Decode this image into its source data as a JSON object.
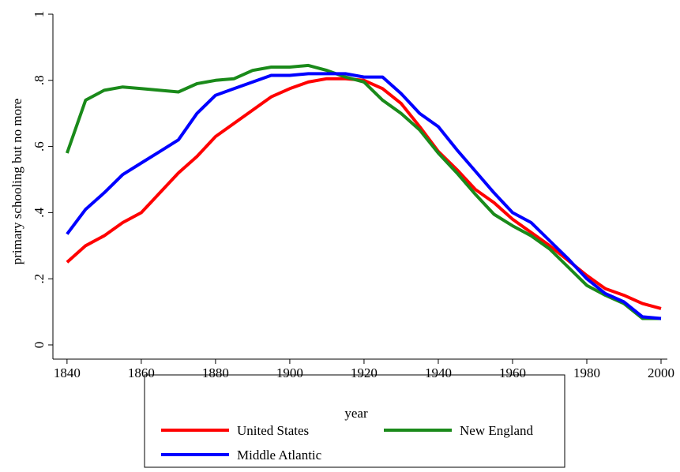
{
  "chart_data": {
    "type": "line",
    "xlabel": "year",
    "ylabel": "primary schooling but no more",
    "x": [
      1840,
      1845,
      1850,
      1855,
      1860,
      1865,
      1870,
      1875,
      1880,
      1885,
      1890,
      1895,
      1900,
      1905,
      1910,
      1915,
      1920,
      1925,
      1930,
      1935,
      1940,
      1945,
      1950,
      1955,
      1960,
      1965,
      1970,
      1975,
      1980,
      1985,
      1990,
      1995,
      2000
    ],
    "series": [
      {
        "name": "United States",
        "color": "#ff0000",
        "values": [
          0.25,
          0.3,
          0.33,
          0.37,
          0.4,
          0.46,
          0.52,
          0.57,
          0.63,
          0.67,
          0.71,
          0.75,
          0.775,
          0.795,
          0.805,
          0.805,
          0.8,
          0.775,
          0.73,
          0.66,
          0.585,
          0.53,
          0.47,
          0.43,
          0.38,
          0.34,
          0.3,
          0.255,
          0.21,
          0.17,
          0.15,
          0.125,
          0.11
        ]
      },
      {
        "name": "New England",
        "color": "#1a8a1a",
        "values": [
          0.58,
          0.74,
          0.77,
          0.78,
          0.775,
          0.77,
          0.765,
          0.79,
          0.8,
          0.805,
          0.83,
          0.84,
          0.84,
          0.845,
          0.83,
          0.81,
          0.795,
          0.74,
          0.7,
          0.65,
          0.58,
          0.52,
          0.455,
          0.395,
          0.36,
          0.33,
          0.29,
          0.235,
          0.18,
          0.15,
          0.125,
          0.08,
          0.08
        ]
      },
      {
        "name": "Middle Atlantic",
        "color": "#0000ff",
        "values": [
          0.335,
          0.41,
          0.46,
          0.515,
          0.55,
          0.585,
          0.62,
          0.7,
          0.755,
          0.775,
          0.795,
          0.815,
          0.815,
          0.82,
          0.82,
          0.82,
          0.81,
          0.81,
          0.76,
          0.7,
          0.66,
          0.59,
          0.525,
          0.46,
          0.4,
          0.37,
          0.315,
          0.26,
          0.2,
          0.155,
          0.13,
          0.085,
          0.08
        ]
      }
    ],
    "xlim": [
      1836.2,
      2001.7
    ],
    "xticks": [
      1840,
      1860,
      1880,
      1900,
      1920,
      1940,
      1960,
      1980,
      2000
    ],
    "ylim": [
      -0.043,
      1
    ],
    "yticks": [
      0,
      {
        "value": 0.2,
        "label": ".2"
      },
      {
        "value": 0.4,
        "label": ".4"
      },
      {
        "value": 0.6,
        "label": ".6"
      },
      {
        "value": 0.8,
        "label": ".8"
      },
      1
    ],
    "grid": false,
    "legend": "bottom"
  }
}
